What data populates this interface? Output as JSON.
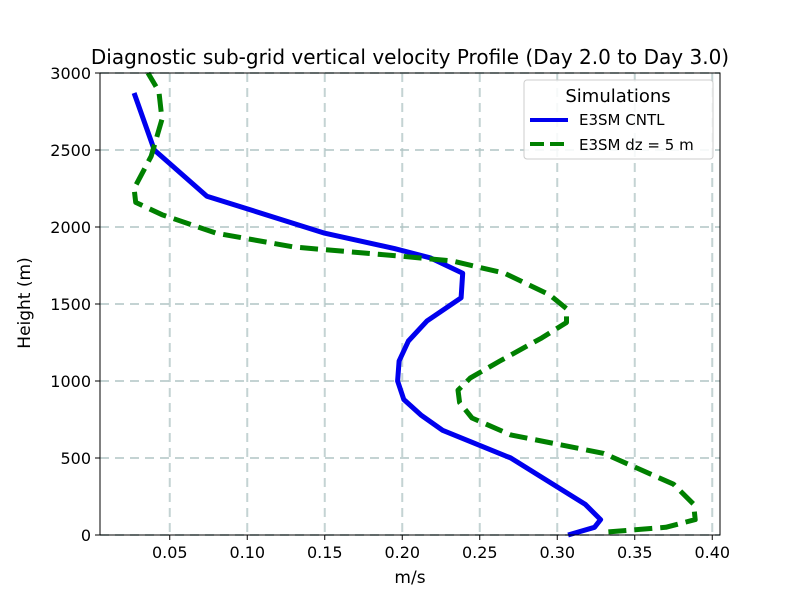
{
  "chart_data": {
    "type": "line",
    "title": "Diagnostic sub-grid vertical velocity Profile (Day 2.0 to Day 3.0)",
    "xlabel": "m/s",
    "ylabel": "Height (m)",
    "xlim": [
      0.005,
      0.405
    ],
    "ylim": [
      0,
      3000
    ],
    "xticks": [
      0.05,
      0.1,
      0.15,
      0.2,
      0.25,
      0.3,
      0.35,
      0.4
    ],
    "xtick_labels": [
      "0.05",
      "0.10",
      "0.15",
      "0.20",
      "0.25",
      "0.30",
      "0.35",
      "0.40"
    ],
    "yticks": [
      0,
      500,
      1000,
      1500,
      2000,
      2500,
      3000
    ],
    "ytick_labels": [
      "0",
      "500",
      "1000",
      "1500",
      "2000",
      "2500",
      "3000"
    ],
    "grid": true,
    "legend": {
      "title": "Simulations",
      "location": "upper-right"
    },
    "series": [
      {
        "name": "E3SM CNTL",
        "color": "#0000ee",
        "style": "solid",
        "x": [
          0.307,
          0.324,
          0.328,
          0.318,
          0.27,
          0.226,
          0.212,
          0.201,
          0.197,
          0.198,
          0.204,
          0.216,
          0.238,
          0.239,
          0.218,
          0.195,
          0.15,
          0.074,
          0.04,
          0.027
        ],
        "y": [
          0,
          50,
          100,
          200,
          500,
          680,
          780,
          880,
          1000,
          1130,
          1260,
          1390,
          1540,
          1700,
          1800,
          1860,
          1960,
          2200,
          2500,
          2870
        ]
      },
      {
        "name": "E3SM dz = 5 m",
        "color": "#008000",
        "style": "dashed",
        "x": [
          0.333,
          0.37,
          0.389,
          0.388,
          0.375,
          0.33,
          0.27,
          0.245,
          0.237,
          0.236,
          0.244,
          0.263,
          0.29,
          0.306,
          0.306,
          0.295,
          0.266,
          0.232,
          0.2,
          0.13,
          0.08,
          0.045,
          0.028,
          0.027,
          0.038,
          0.045,
          0.043,
          0.036
        ],
        "y": [
          20,
          50,
          100,
          200,
          330,
          530,
          650,
          760,
          860,
          940,
          1020,
          1130,
          1280,
          1380,
          1470,
          1560,
          1700,
          1780,
          1810,
          1870,
          1960,
          2080,
          2160,
          2250,
          2460,
          2700,
          2880,
          3000
        ]
      }
    ]
  }
}
